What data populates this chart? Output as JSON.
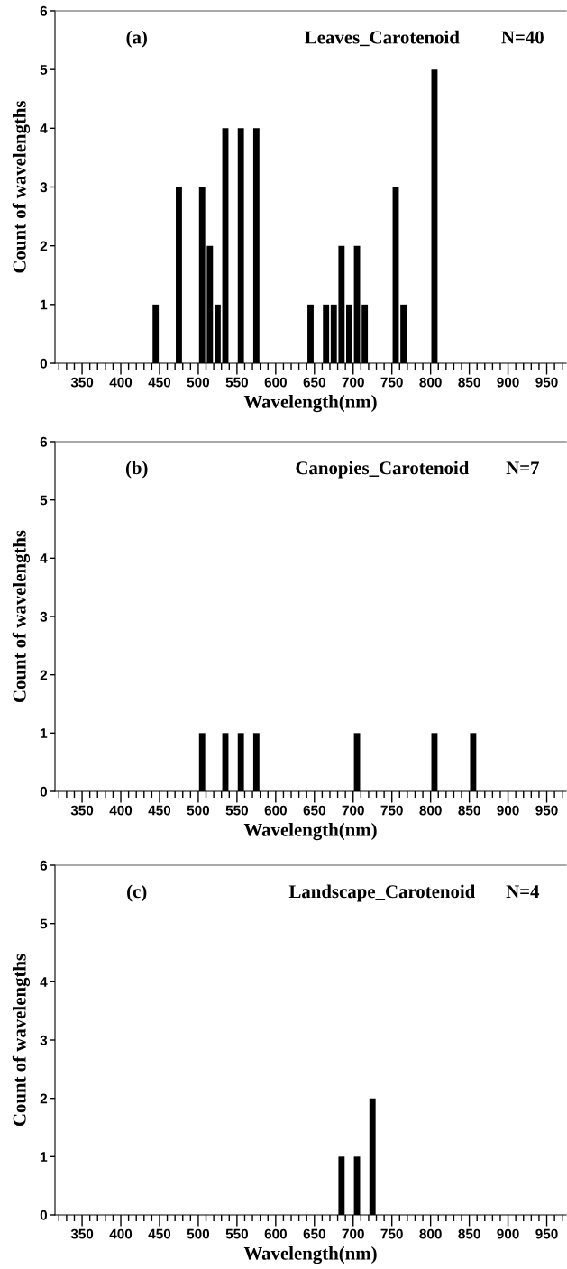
{
  "chart_data": [
    {
      "type": "histogram",
      "title": "Leaves_Carotenoid",
      "annotations": [
        "(a)",
        "N=40"
      ],
      "xlabel": "Wavelength(nm)",
      "ylabel": "Count of wavelengths",
      "color": "#000000",
      "bins": [
        440,
        450,
        460,
        470,
        480,
        490,
        500,
        510,
        520,
        530,
        540,
        550,
        560,
        570,
        580,
        590,
        600,
        610,
        620,
        630,
        640,
        650,
        660,
        670,
        680,
        690,
        700,
        710,
        720,
        730,
        740,
        750,
        760,
        770,
        780,
        790,
        800,
        810
      ],
      "values": [
        1,
        0,
        0,
        3,
        0,
        0,
        3,
        2,
        1,
        4,
        0,
        4,
        0,
        4,
        0,
        0,
        0,
        0,
        0,
        0,
        1,
        0,
        1,
        1,
        2,
        1,
        2,
        1,
        0,
        0,
        0,
        3,
        1,
        0,
        0,
        0,
        5
      ],
      "xlim": [
        315,
        975
      ],
      "ylim": [
        0,
        6
      ],
      "yticks": [
        0,
        1,
        2,
        3,
        4,
        5,
        6
      ],
      "xticks": [
        {
          "value": 320,
          "label": null
        },
        {
          "value": 330,
          "label": null
        },
        {
          "value": 340,
          "label": null
        },
        350,
        {
          "value": 360,
          "label": null
        },
        {
          "value": 370,
          "label": null
        },
        {
          "value": 380,
          "label": null
        },
        {
          "value": 390,
          "label": null
        },
        400,
        {
          "value": 410,
          "label": null
        },
        {
          "value": 420,
          "label": null
        },
        {
          "value": 430,
          "label": null
        },
        {
          "value": 440,
          "label": null
        },
        450,
        {
          "value": 460,
          "label": null
        },
        {
          "value": 470,
          "label": null
        },
        {
          "value": 480,
          "label": null
        },
        {
          "value": 490,
          "label": null
        },
        500,
        {
          "value": 510,
          "label": null
        },
        {
          "value": 520,
          "label": null
        },
        {
          "value": 530,
          "label": null
        },
        {
          "value": 540,
          "label": null
        },
        550,
        {
          "value": 560,
          "label": null
        },
        {
          "value": 570,
          "label": null
        },
        {
          "value": 580,
          "label": null
        },
        {
          "value": 590,
          "label": null
        },
        600,
        {
          "value": 610,
          "label": null
        },
        {
          "value": 620,
          "label": null
        },
        {
          "value": 630,
          "label": null
        },
        {
          "value": 640,
          "label": null
        },
        650,
        {
          "value": 660,
          "label": null
        },
        {
          "value": 670,
          "label": null
        },
        {
          "value": 680,
          "label": null
        },
        {
          "value": 690,
          "label": null
        },
        700,
        {
          "value": 710,
          "label": null
        },
        {
          "value": 720,
          "label": null
        },
        {
          "value": 730,
          "label": null
        },
        {
          "value": 740,
          "label": null
        },
        750,
        {
          "value": 760,
          "label": null
        },
        {
          "value": 770,
          "label": null
        },
        {
          "value": 780,
          "label": null
        },
        {
          "value": 790,
          "label": null
        },
        800,
        {
          "value": 810,
          "label": null
        },
        {
          "value": 820,
          "label": null
        },
        {
          "value": 830,
          "label": null
        },
        {
          "value": 840,
          "label": null
        },
        850,
        {
          "value": 860,
          "label": null
        },
        {
          "value": 870,
          "label": null
        },
        {
          "value": 880,
          "label": null
        },
        {
          "value": 890,
          "label": null
        },
        900,
        {
          "value": 910,
          "label": null
        },
        {
          "value": 920,
          "label": null
        },
        {
          "value": 930,
          "label": null
        },
        {
          "value": 940,
          "label": null
        },
        950,
        {
          "value": 960,
          "label": null
        },
        {
          "value": 970,
          "label": null
        }
      ]
    },
    {
      "type": "histogram",
      "title": "Canopies_Carotenoid",
      "annotations": [
        "(b)",
        "N=7"
      ],
      "xlabel": "Wavelength(nm)",
      "ylabel": "Count of wavelengths",
      "color": "#000000",
      "bins": [
        500,
        510,
        520,
        530,
        540,
        550,
        560,
        570,
        580,
        590,
        600,
        610,
        620,
        630,
        640,
        650,
        660,
        670,
        680,
        690,
        700,
        710,
        720,
        730,
        740,
        750,
        760,
        770,
        780,
        790,
        800,
        810,
        820,
        830,
        840,
        850,
        860
      ],
      "values": [
        1,
        0,
        0,
        1,
        0,
        1,
        0,
        1,
        0,
        0,
        0,
        0,
        0,
        0,
        0,
        0,
        0,
        0,
        0,
        0,
        1,
        0,
        0,
        0,
        0,
        0,
        0,
        0,
        0,
        0,
        1,
        0,
        0,
        0,
        0,
        1
      ],
      "xlim": [
        315,
        975
      ],
      "ylim": [
        0,
        6
      ],
      "yticks": [
        0,
        1,
        2,
        3,
        4,
        5,
        6
      ],
      "xticks": [
        {
          "value": 320,
          "label": null
        },
        {
          "value": 330,
          "label": null
        },
        {
          "value": 340,
          "label": null
        },
        350,
        {
          "value": 360,
          "label": null
        },
        {
          "value": 370,
          "label": null
        },
        {
          "value": 380,
          "label": null
        },
        {
          "value": 390,
          "label": null
        },
        400,
        {
          "value": 410,
          "label": null
        },
        {
          "value": 420,
          "label": null
        },
        {
          "value": 430,
          "label": null
        },
        {
          "value": 440,
          "label": null
        },
        450,
        {
          "value": 460,
          "label": null
        },
        {
          "value": 470,
          "label": null
        },
        {
          "value": 480,
          "label": null
        },
        {
          "value": 490,
          "label": null
        },
        500,
        {
          "value": 510,
          "label": null
        },
        {
          "value": 520,
          "label": null
        },
        {
          "value": 530,
          "label": null
        },
        {
          "value": 540,
          "label": null
        },
        550,
        {
          "value": 560,
          "label": null
        },
        {
          "value": 570,
          "label": null
        },
        {
          "value": 580,
          "label": null
        },
        {
          "value": 590,
          "label": null
        },
        600,
        {
          "value": 610,
          "label": null
        },
        {
          "value": 620,
          "label": null
        },
        {
          "value": 630,
          "label": null
        },
        {
          "value": 640,
          "label": null
        },
        650,
        {
          "value": 660,
          "label": null
        },
        {
          "value": 670,
          "label": null
        },
        {
          "value": 680,
          "label": null
        },
        {
          "value": 690,
          "label": null
        },
        700,
        {
          "value": 710,
          "label": null
        },
        {
          "value": 720,
          "label": null
        },
        {
          "value": 730,
          "label": null
        },
        {
          "value": 740,
          "label": null
        },
        750,
        {
          "value": 760,
          "label": null
        },
        {
          "value": 770,
          "label": null
        },
        {
          "value": 780,
          "label": null
        },
        {
          "value": 790,
          "label": null
        },
        800,
        {
          "value": 810,
          "label": null
        },
        {
          "value": 820,
          "label": null
        },
        {
          "value": 830,
          "label": null
        },
        {
          "value": 840,
          "label": null
        },
        850,
        {
          "value": 860,
          "label": null
        },
        {
          "value": 870,
          "label": null
        },
        {
          "value": 880,
          "label": null
        },
        {
          "value": 890,
          "label": null
        },
        900,
        {
          "value": 910,
          "label": null
        },
        {
          "value": 920,
          "label": null
        },
        {
          "value": 930,
          "label": null
        },
        {
          "value": 940,
          "label": null
        },
        950,
        {
          "value": 960,
          "label": null
        },
        {
          "value": 970,
          "label": null
        }
      ]
    },
    {
      "type": "histogram",
      "title": "Landscape_Carotenoid",
      "annotations": [
        "(c)",
        "N=4"
      ],
      "xlabel": "Wavelength(nm)",
      "ylabel": "Count of wavelengths",
      "color": "#000000",
      "bins": [
        680,
        690,
        700,
        710,
        720,
        730
      ],
      "values": [
        1,
        0,
        1,
        0,
        2
      ],
      "xlim": [
        315,
        975
      ],
      "ylim": [
        0,
        6
      ],
      "yticks": [
        0,
        1,
        2,
        3,
        4,
        5,
        6
      ],
      "xticks": [
        {
          "value": 320,
          "label": null
        },
        {
          "value": 330,
          "label": null
        },
        {
          "value": 340,
          "label": null
        },
        350,
        {
          "value": 360,
          "label": null
        },
        {
          "value": 370,
          "label": null
        },
        {
          "value": 380,
          "label": null
        },
        {
          "value": 390,
          "label": null
        },
        400,
        {
          "value": 410,
          "label": null
        },
        {
          "value": 420,
          "label": null
        },
        {
          "value": 430,
          "label": null
        },
        {
          "value": 440,
          "label": null
        },
        450,
        {
          "value": 460,
          "label": null
        },
        {
          "value": 470,
          "label": null
        },
        {
          "value": 480,
          "label": null
        },
        {
          "value": 490,
          "label": null
        },
        500,
        {
          "value": 510,
          "label": null
        },
        {
          "value": 520,
          "label": null
        },
        {
          "value": 530,
          "label": null
        },
        {
          "value": 540,
          "label": null
        },
        550,
        {
          "value": 560,
          "label": null
        },
        {
          "value": 570,
          "label": null
        },
        {
          "value": 580,
          "label": null
        },
        {
          "value": 590,
          "label": null
        },
        600,
        {
          "value": 610,
          "label": null
        },
        {
          "value": 620,
          "label": null
        },
        {
          "value": 630,
          "label": null
        },
        {
          "value": 640,
          "label": null
        },
        650,
        {
          "value": 660,
          "label": null
        },
        {
          "value": 670,
          "label": null
        },
        {
          "value": 680,
          "label": null
        },
        {
          "value": 690,
          "label": null
        },
        700,
        {
          "value": 710,
          "label": null
        },
        {
          "value": 720,
          "label": null
        },
        {
          "value": 730,
          "label": null
        },
        {
          "value": 740,
          "label": null
        },
        750,
        {
          "value": 760,
          "label": null
        },
        {
          "value": 770,
          "label": null
        },
        {
          "value": 780,
          "label": null
        },
        {
          "value": 790,
          "label": null
        },
        800,
        {
          "value": 810,
          "label": null
        },
        {
          "value": 820,
          "label": null
        },
        {
          "value": 830,
          "label": null
        },
        {
          "value": 840,
          "label": null
        },
        850,
        {
          "value": 860,
          "label": null
        },
        {
          "value": 870,
          "label": null
        },
        {
          "value": 880,
          "label": null
        },
        {
          "value": 890,
          "label": null
        },
        900,
        {
          "value": 910,
          "label": null
        },
        {
          "value": 920,
          "label": null
        },
        {
          "value": 930,
          "label": null
        },
        {
          "value": 940,
          "label": null
        },
        950,
        {
          "value": 960,
          "label": null
        },
        {
          "value": 970,
          "label": null
        }
      ]
    }
  ]
}
